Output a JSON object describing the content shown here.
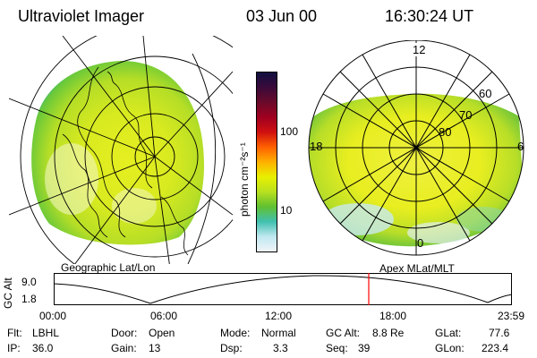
{
  "header": {
    "instrument": "Ultraviolet Imager",
    "date": "03 Jun 00",
    "time": "16:30:24 UT"
  },
  "colorbar": {
    "label": "photon cm⁻²s⁻¹",
    "ticks": [
      "100",
      "10"
    ],
    "colors": [
      "#101040",
      "#3a0a3a",
      "#6a0a2a",
      "#a00020",
      "#d01010",
      "#ff6000",
      "#ffb000",
      "#e8f000",
      "#b8e020",
      "#60c030",
      "#40c0b0",
      "#c0e8f0",
      "#f0f4f8"
    ]
  },
  "left_panel": {
    "label": "Geographic Lat/Lon"
  },
  "right_panel": {
    "label": "Apex MLat/MLT",
    "mlt_labels": [
      "12",
      "18",
      "6",
      "0"
    ],
    "lat_labels": [
      "60",
      "70",
      "80"
    ]
  },
  "orbit": {
    "axis_label": "GC Alt",
    "y_ticks": [
      "9.0",
      "1.8"
    ],
    "x_ticks": [
      "00:00",
      "06:00",
      "12:00",
      "18:00",
      "23:59"
    ],
    "current_fraction": 0.6875
  },
  "status": {
    "flt_label": "Flt:",
    "flt_value": "LBHL",
    "ip_label": "IP:",
    "ip_value": "36.0",
    "door_label": "Door:",
    "door_value": "Open",
    "gain_label": "Gain:",
    "gain_value": "13",
    "mode_label": "Mode:",
    "mode_value": "Normal",
    "dsp_label": "Dsp:",
    "dsp_value": "3.3",
    "gcalt_label": "GC Alt:",
    "gcalt_value": "8.8 Re",
    "seq_label": "Seq:",
    "seq_value": "39",
    "glat_label": "GLat:",
    "glat_value": "77.6",
    "glon_label": "GLon:",
    "glon_value": "223.4"
  }
}
